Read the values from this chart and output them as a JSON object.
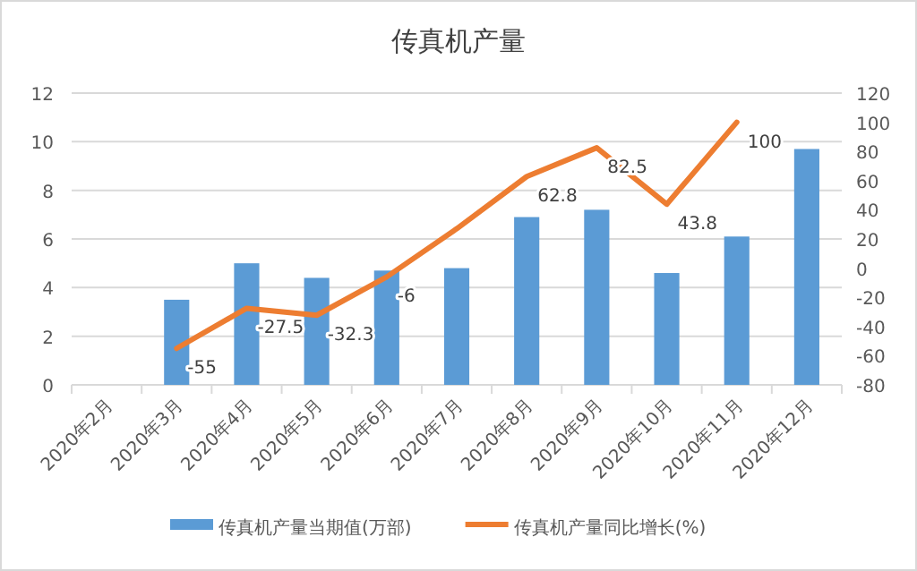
{
  "chart_data": {
    "type": "bar",
    "title": "传真机产量",
    "categories": [
      "2020年2月",
      "2020年3月",
      "2020年4月",
      "2020年5月",
      "2020年6月",
      "2020年7月",
      "2020年8月",
      "2020年9月",
      "2020年10月",
      "2020年11月",
      "2020年12月"
    ],
    "series": [
      {
        "name": "传真机产量当期值(万部)",
        "color": "#5b9bd5",
        "values": [
          null,
          3.5,
          5.0,
          4.4,
          4.7,
          4.8,
          6.9,
          7.2,
          4.6,
          6.1,
          9.7
        ]
      },
      {
        "name": "传真机产量同比增长(%)",
        "type": "line",
        "axis": "y2",
        "color": "#ed7d31",
        "values": [
          null,
          -55,
          -27.5,
          -32.3,
          -6,
          27,
          62.8,
          82.5,
          43.8,
          100,
          null
        ],
        "value_labels": [
          null,
          "-55",
          "-27.5",
          "-32.3",
          "-6",
          null,
          "62.8",
          "82.5",
          "43.8",
          "100",
          null
        ]
      }
    ],
    "ylim": [
      0,
      12
    ],
    "yticks": [
      0,
      2,
      4,
      6,
      8,
      10,
      12
    ],
    "y2lim": [
      -80,
      120
    ],
    "y2ticks": [
      -80,
      -60,
      -40,
      -20,
      0,
      20,
      40,
      60,
      80,
      100,
      120
    ],
    "grid": "y",
    "legend": "bottom"
  }
}
